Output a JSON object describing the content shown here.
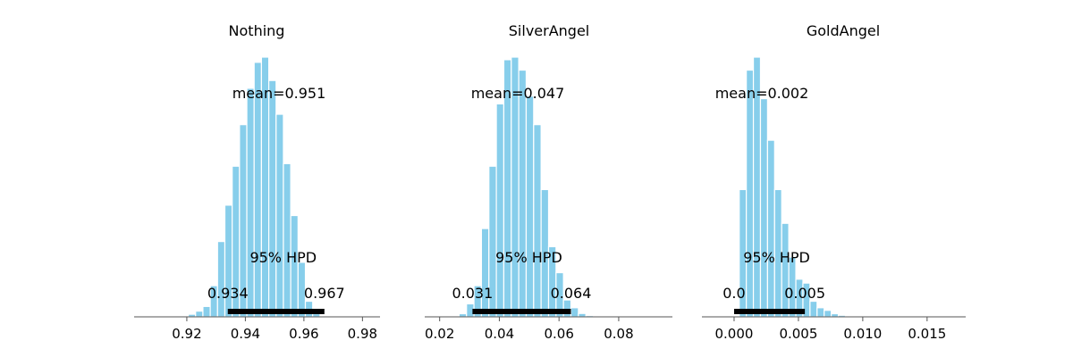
{
  "colors": {
    "bar": "#87ceeb",
    "hpd": "#000000",
    "axis": "#555555"
  },
  "chart_data": [
    {
      "type": "bar",
      "title": "Nothing",
      "mean_label": "mean=0.951",
      "hpd_label": "95% HPD",
      "hpd_low_label": "0.934",
      "hpd_high_label": "0.967",
      "hpd": [
        0.934,
        0.967
      ],
      "bin_start": 0.9205,
      "bin_width": 0.0025,
      "counts": [
        0.01,
        0.022,
        0.04,
        0.12,
        0.29,
        0.43,
        0.58,
        0.74,
        0.88,
        0.98,
        1.0,
        0.91,
        0.78,
        0.59,
        0.39,
        0.21,
        0.06,
        0.012
      ],
      "xlim": [
        0.902,
        0.986
      ],
      "xticks": [
        0.92,
        0.94,
        0.96,
        0.98
      ],
      "xtick_labels": [
        "0.92",
        "0.94",
        "0.96",
        "0.98"
      ]
    },
    {
      "type": "bar",
      "title": "SilverAngel",
      "mean_label": "mean=0.047",
      "hpd_label": "95% HPD",
      "hpd_low_label": "0.031",
      "hpd_high_label": "0.064",
      "hpd": [
        0.031,
        0.064
      ],
      "bin_start": 0.0265,
      "bin_width": 0.0025,
      "counts": [
        0.012,
        0.05,
        0.12,
        0.34,
        0.58,
        0.82,
        0.99,
        1.0,
        0.95,
        0.85,
        0.74,
        0.49,
        0.27,
        0.17,
        0.065,
        0.035,
        0.013,
        0.005
      ],
      "xlim": [
        0.015,
        0.098
      ],
      "xticks": [
        0.02,
        0.04,
        0.06,
        0.08
      ],
      "xtick_labels": [
        "0.02",
        "0.04",
        "0.06",
        "0.08"
      ]
    },
    {
      "type": "bar",
      "title": "GoldAngel",
      "mean_label": "mean=0.002",
      "hpd_label": "95% HPD",
      "hpd_low_label": "0.0",
      "hpd_high_label": "0.005",
      "hpd": [
        0.0,
        0.0055
      ],
      "bin_start": 0.0004,
      "bin_width": 0.00055,
      "counts": [
        0.49,
        0.95,
        1.0,
        0.84,
        0.68,
        0.49,
        0.36,
        0.23,
        0.145,
        0.13,
        0.06,
        0.035,
        0.025,
        0.012,
        0.006
      ],
      "xlim": [
        -0.0025,
        0.018
      ],
      "xticks": [
        0.0,
        0.005,
        0.01,
        0.015
      ],
      "xtick_labels": [
        "0.000",
        "0.005",
        "0.010",
        "0.015"
      ]
    }
  ]
}
